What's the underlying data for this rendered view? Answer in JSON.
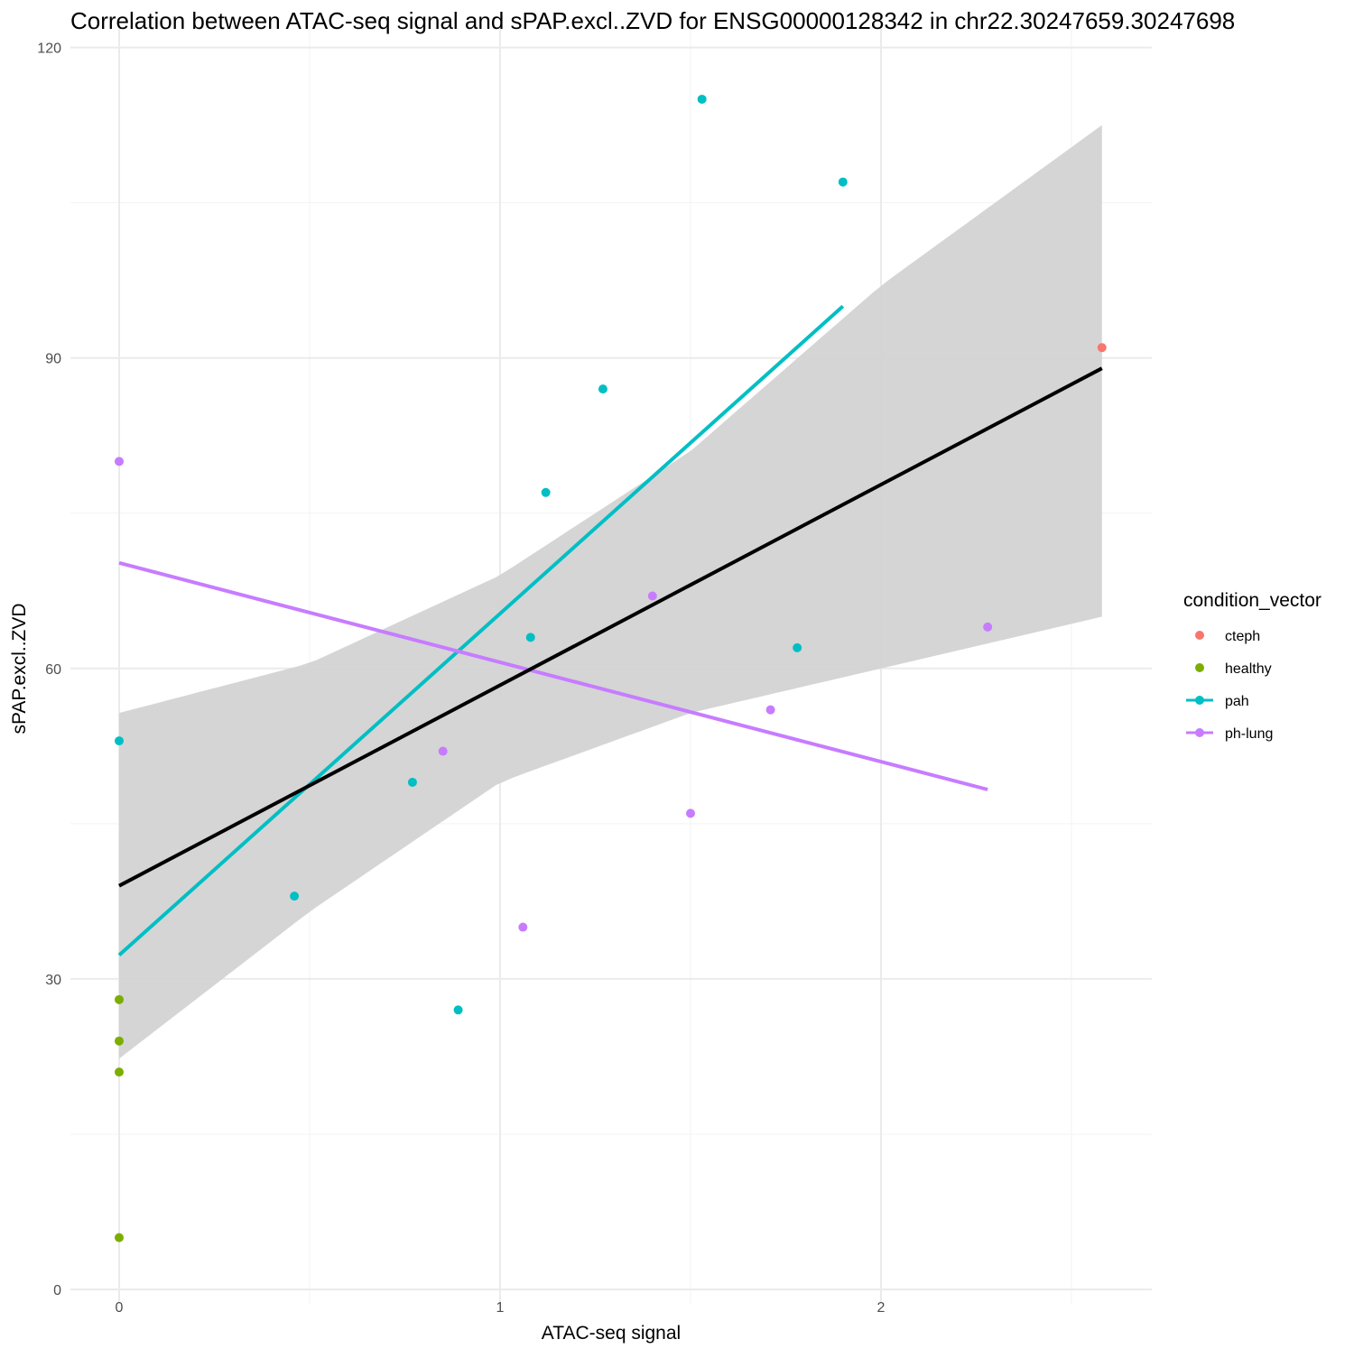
{
  "chart_data": {
    "type": "scatter",
    "title": "Correlation between ATAC-seq signal and sPAP.excl..ZVD for ENSG00000128342 in chr22.30247659.30247698",
    "xlabel": "ATAC-seq signal",
    "ylabel": "sPAP.excl..ZVD",
    "xlim": [
      -0.125,
      2.6
    ],
    "ylim": [
      -1,
      120
    ],
    "x_ticks": [
      0,
      1,
      2
    ],
    "x_tick_labels": [
      "0",
      "1",
      "2"
    ],
    "y_ticks": [
      0,
      30,
      60,
      90,
      120
    ],
    "y_tick_labels": [
      "0",
      "30",
      "60",
      "90",
      "120"
    ],
    "grid": true,
    "legend_title": "condition_vector",
    "legend_position": "right",
    "series": [
      {
        "name": "cteph",
        "color": "#F8766D",
        "points": [
          [
            2.58,
            91
          ]
        ]
      },
      {
        "name": "healthy",
        "color": "#7CAE00",
        "points": [
          [
            0,
            28
          ],
          [
            0,
            24
          ],
          [
            0,
            21
          ],
          [
            0,
            5
          ]
        ]
      },
      {
        "name": "pah",
        "color": "#00BFC4",
        "points": [
          [
            0,
            53
          ],
          [
            0.46,
            38
          ],
          [
            0.77,
            49
          ],
          [
            0.89,
            27
          ],
          [
            1.08,
            63
          ],
          [
            1.12,
            77
          ],
          [
            1.27,
            87
          ],
          [
            1.53,
            115
          ],
          [
            1.78,
            62
          ],
          [
            1.9,
            107
          ]
        ],
        "trend": [
          [
            0,
            32.3
          ],
          [
            1.9,
            95
          ]
        ]
      },
      {
        "name": "ph-lung",
        "color": "#C77CFF",
        "points": [
          [
            0,
            80
          ],
          [
            0.85,
            52
          ],
          [
            1.06,
            35
          ],
          [
            1.4,
            67
          ],
          [
            1.5,
            46
          ],
          [
            1.71,
            56
          ],
          [
            2.28,
            64
          ]
        ],
        "trend": [
          [
            0,
            70.2
          ],
          [
            2.28,
            48.3
          ]
        ]
      }
    ],
    "overall_fit": {
      "color": "#000000",
      "line": [
        [
          0,
          39
        ],
        [
          2.58,
          89
        ]
      ],
      "ci_band": {
        "x": [
          0,
          0.5,
          1.0,
          1.5,
          2.0,
          2.58
        ],
        "lower": [
          22.3,
          36.5,
          49,
          55.7,
          60,
          65
        ],
        "upper": [
          55.7,
          60.5,
          69,
          81,
          97,
          112.5
        ]
      },
      "band_color": "#D3D3D3"
    }
  }
}
